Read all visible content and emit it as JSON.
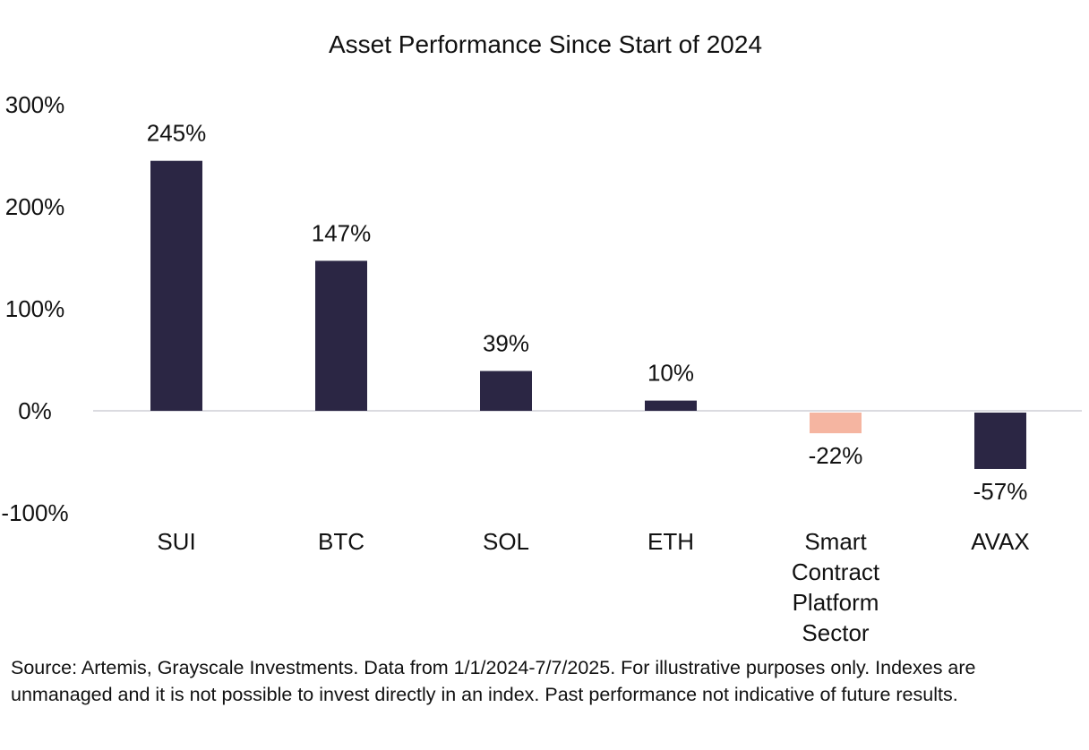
{
  "chart_data": {
    "type": "bar",
    "title": "Asset Performance Since Start of 2024",
    "categories": [
      "SUI",
      "BTC",
      "SOL",
      "ETH",
      "Smart Contract Platform Sector",
      "AVAX"
    ],
    "values": [
      245,
      147,
      39,
      10,
      -22,
      -57
    ],
    "data_labels": [
      "245%",
      "147%",
      "39%",
      "10%",
      "-22%",
      "-57%"
    ],
    "colors": [
      "#2b2644",
      "#2b2644",
      "#2b2644",
      "#2b2644",
      "#f5b5a1",
      "#2b2644"
    ],
    "yticks": [
      {
        "value": 300,
        "label": "300%"
      },
      {
        "value": 200,
        "label": "200%"
      },
      {
        "value": 100,
        "label": "100%"
      },
      {
        "value": 0,
        "label": "0%"
      },
      {
        "value": -100,
        "label": "-100%"
      }
    ],
    "ylim": [
      -100,
      300
    ],
    "xlabel": "",
    "ylabel": "",
    "grid": false,
    "legend": "none"
  },
  "source_note": "Source: Artemis, Grayscale Investments. Data from 1/1/2024-7/7/2025. For illustrative purposes only. Indexes are unmanaged and it is not possible to invest directly in an index. Past performance not indicative of future results."
}
